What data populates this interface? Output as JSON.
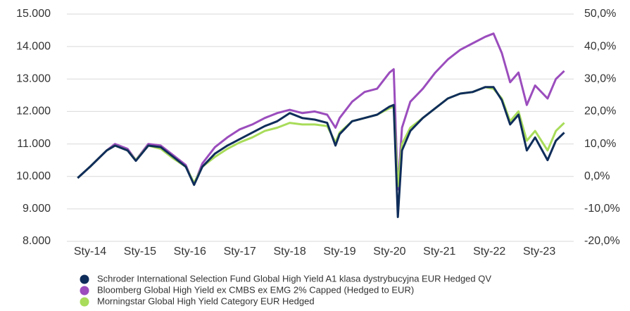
{
  "chart_data": {
    "type": "line",
    "x": [
      "2013-10",
      "2014-01",
      "2014-05",
      "2014-07",
      "2014-10",
      "2014-12",
      "2015-03",
      "2015-06",
      "2015-09",
      "2015-12",
      "2016-02",
      "2016-04",
      "2016-07",
      "2016-10",
      "2017-01",
      "2017-04",
      "2017-07",
      "2017-10",
      "2018-01",
      "2018-04",
      "2018-07",
      "2018-10",
      "2018-12",
      "2019-01",
      "2019-04",
      "2019-07",
      "2019-10",
      "2020-01",
      "2020-02",
      "2020-03",
      "2020-04",
      "2020-06",
      "2020-09",
      "2020-12",
      "2021-03",
      "2021-06",
      "2021-09",
      "2021-12",
      "2022-02",
      "2022-04",
      "2022-06",
      "2022-08",
      "2022-10",
      "2022-12",
      "2023-03",
      "2023-05",
      "2023-07"
    ],
    "series": [
      {
        "name": "Schroder International Selection Fund Global High Yield A1 klasa dystrybucyjna EUR Hedged QV",
        "color": "#0f2d5a",
        "values": [
          9950,
          10300,
          10800,
          10950,
          10800,
          10480,
          10950,
          10900,
          10600,
          10300,
          9740,
          10300,
          10700,
          10950,
          11150,
          11350,
          11550,
          11700,
          11950,
          11800,
          11750,
          11650,
          10950,
          11300,
          11700,
          11800,
          11900,
          12150,
          12200,
          8750,
          10800,
          11400,
          11800,
          12100,
          12400,
          12550,
          12600,
          12750,
          12750,
          12350,
          11600,
          11900,
          10800,
          11200,
          10500,
          11100,
          11350
        ]
      },
      {
        "name": "Bloomberg Global High Yield ex CMBS ex EMG 2% Capped (Hedged to EUR)",
        "color": "#9b4dbd",
        "values": [
          9950,
          10300,
          10800,
          11000,
          10850,
          10500,
          11000,
          10950,
          10650,
          10350,
          9750,
          10400,
          10900,
          11200,
          11450,
          11600,
          11800,
          11950,
          12050,
          11950,
          12000,
          11900,
          11500,
          11800,
          12300,
          12600,
          12700,
          13200,
          13300,
          9600,
          11500,
          12300,
          12700,
          13200,
          13600,
          13900,
          14100,
          14300,
          14400,
          13800,
          12900,
          13200,
          12200,
          12800,
          12400,
          13000,
          13250
        ]
      },
      {
        "name": "Morningstar Global High Yield Category EUR Hedged",
        "color": "#a8dc5a",
        "values": [
          9950,
          10300,
          10800,
          10950,
          10800,
          10500,
          10950,
          10850,
          10550,
          10300,
          9800,
          10300,
          10600,
          10850,
          11050,
          11200,
          11400,
          11500,
          11650,
          11600,
          11600,
          11550,
          11050,
          11350,
          11700,
          11800,
          11900,
          12100,
          12150,
          9700,
          11000,
          11500,
          11800,
          12100,
          12400,
          12550,
          12600,
          12750,
          12700,
          12400,
          11700,
          12000,
          11100,
          11400,
          10800,
          11400,
          11650
        ]
      }
    ],
    "ylim": [
      8000,
      15000
    ],
    "yticks": [
      {
        "value": 8000,
        "label": "8.000"
      },
      {
        "value": 9000,
        "label": "9.000"
      },
      {
        "value": 10000,
        "label": "10.000"
      },
      {
        "value": 11000,
        "label": "11.000"
      },
      {
        "value": 12000,
        "label": "12.000"
      },
      {
        "value": 13000,
        "label": "13.000"
      },
      {
        "value": 14000,
        "label": "14.000"
      },
      {
        "value": 15000,
        "label": "15.000"
      }
    ],
    "y2lim": [
      -20,
      50
    ],
    "y2ticks": [
      {
        "value": -20,
        "label": "-20,0%"
      },
      {
        "value": -10,
        "label": "-10,0%"
      },
      {
        "value": 0,
        "label": "0,0%"
      },
      {
        "value": 10,
        "label": "10,0%"
      },
      {
        "value": 20,
        "label": "20,0%"
      },
      {
        "value": 30,
        "label": "30,0%"
      },
      {
        "value": 40,
        "label": "40,0%"
      },
      {
        "value": 50,
        "label": "50,0%"
      }
    ],
    "xticks": [
      {
        "value": "2014-01",
        "label": "Sty-14"
      },
      {
        "value": "2015-01",
        "label": "Sty-15"
      },
      {
        "value": "2016-01",
        "label": "Sty-16"
      },
      {
        "value": "2017-01",
        "label": "Sty-17"
      },
      {
        "value": "2018-01",
        "label": "Sty-18"
      },
      {
        "value": "2019-01",
        "label": "Sty-19"
      },
      {
        "value": "2020-01",
        "label": "Sty-20"
      },
      {
        "value": "2021-01",
        "label": "Sty-21"
      },
      {
        "value": "2022-01",
        "label": "Sty-22"
      },
      {
        "value": "2023-01",
        "label": "Sty-23"
      }
    ],
    "grid": true,
    "legend": "bottom"
  }
}
